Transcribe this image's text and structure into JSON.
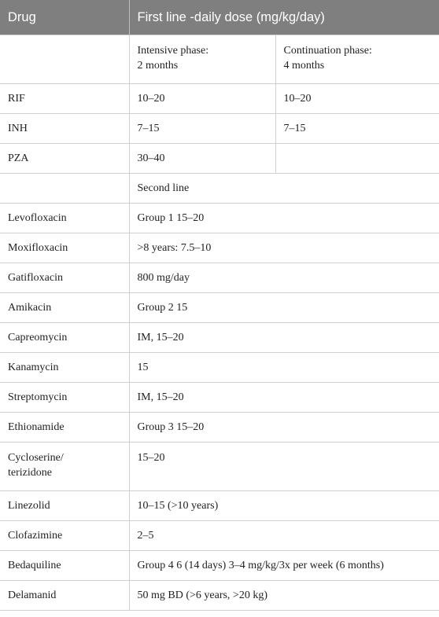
{
  "header": {
    "drug": "Drug",
    "dose": "First line -daily dose (mg/kg/day)"
  },
  "phases": {
    "intensive": [
      "Intensive phase:",
      "2 months"
    ],
    "continuation": [
      "Continuation phase:",
      "4 months"
    ]
  },
  "first_line": [
    {
      "drug": "RIF",
      "intensive": "10–20",
      "continuation": "10–20"
    },
    {
      "drug": "INH",
      "intensive": "7–15",
      "continuation": "7–15"
    },
    {
      "drug": "PZA",
      "intensive": "30–40",
      "continuation": ""
    }
  ],
  "second_line_label": "Second line",
  "second_line": [
    {
      "drug": [
        "Levofloxacin"
      ],
      "dose": "Group 1 15–20"
    },
    {
      "drug": [
        "Moxifloxacin"
      ],
      "dose": ">8 years: 7.5–10"
    },
    {
      "drug": [
        "Gatifloxacin"
      ],
      "dose": "800 mg/day"
    },
    {
      "drug": [
        "Amikacin"
      ],
      "dose": "Group 2 15"
    },
    {
      "drug": [
        "Capreomycin"
      ],
      "dose": "IM, 15–20"
    },
    {
      "drug": [
        "Kanamycin"
      ],
      "dose": "15"
    },
    {
      "drug": [
        "Streptomycin"
      ],
      "dose": "IM, 15–20"
    },
    {
      "drug": [
        "Ethionamide"
      ],
      "dose": "Group 3 15–20"
    },
    {
      "drug": [
        "Cycloserine/",
        "terizidone"
      ],
      "dose": "15–20"
    },
    {
      "drug": [
        "Linezolid"
      ],
      "dose": "10–15 (>10 years)"
    },
    {
      "drug": [
        "Clofazimine"
      ],
      "dose": "2–5"
    },
    {
      "drug": [
        "Bedaquiline"
      ],
      "dose": "Group 4 6 (14 days) 3–4 mg/kg/3x per week (6 months)"
    },
    {
      "drug": [
        "Delamanid"
      ],
      "dose": "50 mg BD (>6 years, >20 kg)"
    }
  ]
}
